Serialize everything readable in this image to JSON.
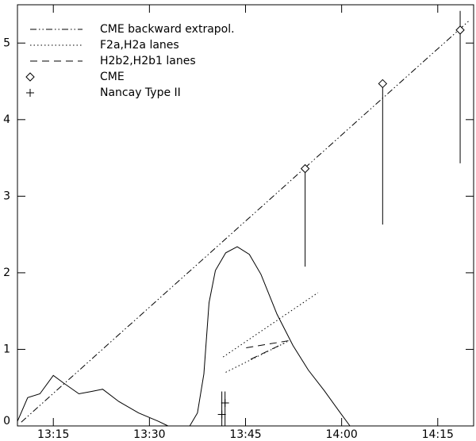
{
  "chart_data": {
    "type": "line",
    "xlim": [
      789.4,
      860.6
    ],
    "ylim": [
      0,
      5.5
    ],
    "xticks": [
      {
        "value": 795,
        "label": "13:15"
      },
      {
        "value": 810,
        "label": "13:30"
      },
      {
        "value": 825,
        "label": "13:45"
      },
      {
        "value": 840,
        "label": "14:00"
      },
      {
        "value": 855,
        "label": "14:15"
      }
    ],
    "yticks": [
      0,
      1,
      2,
      3,
      4,
      5
    ],
    "color": "#000000",
    "series": [
      {
        "name": "CME backward extrapol.",
        "style": "dash-dot-dot",
        "x": [
          790,
          860
        ],
        "values": [
          0.05,
          5.3
        ]
      },
      {
        "name": "F2a,H2a lanes",
        "style": "dotted",
        "lanes": [
          {
            "x": [
              821.5,
              836.3
            ],
            "values": [
              0.9,
              1.74
            ]
          },
          {
            "x": [
              821.9,
              831.5
            ],
            "values": [
              0.7,
              1.1
            ]
          }
        ]
      },
      {
        "name": "H2b2,H2b1 lanes",
        "style": "dashed",
        "lanes": [
          {
            "x": [
              825.1,
              832.2
            ],
            "values": [
              1.02,
              1.12
            ]
          },
          {
            "x": [
              825.8,
              831.0
            ],
            "values": [
              0.87,
              1.08
            ]
          }
        ]
      },
      {
        "name": "CME",
        "marker": "diamond",
        "x": [
          834.3,
          846.4,
          858.5
        ],
        "values": [
          3.36,
          4.47,
          5.17
        ],
        "ymin": [
          2.08,
          2.63,
          3.43
        ],
        "ymax": [
          3.36,
          4.47,
          5.42
        ]
      },
      {
        "name": "Nancay Type II",
        "marker": "plus",
        "x": [
          821.3,
          821.8
        ],
        "values": [
          0.15,
          0.3
        ],
        "ymin": [
          0,
          0
        ],
        "ymax": [
          0.45,
          0.45
        ]
      },
      {
        "style": "solid",
        "x": [
          789.4,
          791.0,
          792.9,
          795.0,
          796.6,
          799.0,
          800.9,
          802.7,
          805.2,
          808.3,
          811.4,
          812.9,
          814.6,
          816.3,
          817.5,
          818.5,
          819.3,
          820.3,
          821.9,
          823.7,
          825.6,
          827.4,
          829.9,
          832.4,
          834.8,
          837.3,
          839.8,
          841.3
        ],
        "values": [
          0.06,
          0.37,
          0.42,
          0.66,
          0.56,
          0.42,
          0.45,
          0.48,
          0.32,
          0.17,
          0.06,
          0,
          null,
          0,
          0.17,
          0.68,
          1.61,
          2.03,
          2.26,
          2.34,
          2.24,
          1.98,
          1.46,
          1.05,
          0.73,
          0.46,
          0.17,
          0
        ]
      }
    ]
  }
}
